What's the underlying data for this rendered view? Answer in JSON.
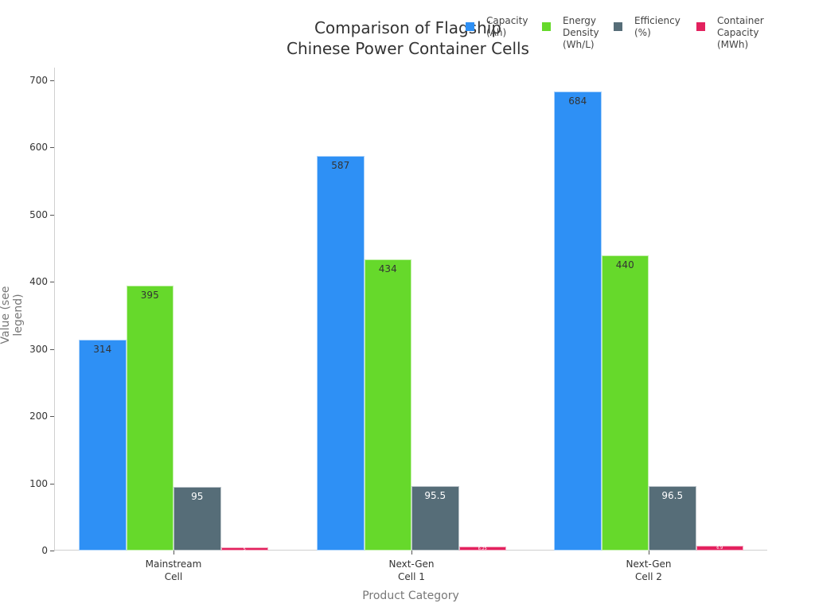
{
  "chart_data": {
    "type": "bar",
    "title": "Comparison of Flagship\nChinese Power Container Cells",
    "xlabel": "Product Category",
    "ylabel": "Value (see legend)",
    "ylim": [
      0,
      720
    ],
    "yticks": [
      0,
      100,
      200,
      300,
      400,
      500,
      600,
      700
    ],
    "grid": false,
    "legend_position": "top-right",
    "categories": [
      "Mainstream\nCell",
      "Next-Gen\nCell 1",
      "Next-Gen\nCell 2"
    ],
    "series": [
      {
        "name": "Capacity\n(Ah)",
        "color": "#2E90F5",
        "label_color": "#333333",
        "values": [
          314,
          587,
          684
        ],
        "labels": [
          "314",
          "587",
          "684"
        ]
      },
      {
        "name": "Energy\nDensity\n(Wh/L)",
        "color": "#66D92B",
        "label_color": "#333333",
        "values": [
          395,
          434,
          440
        ],
        "labels": [
          "395",
          "434",
          "440"
        ]
      },
      {
        "name": "Efficiency\n(%)",
        "color": "#566D78",
        "label_color": "#ffffff",
        "values": [
          95,
          95.5,
          96.5
        ],
        "labels": [
          "95",
          "95.5",
          "96.5"
        ]
      },
      {
        "name": "Container\nCapacity\n(MWh)",
        "color": "#E3215E",
        "label_color": "#ffffff",
        "values": [
          5,
          6.25,
          6.9
        ],
        "labels": [
          "5",
          "6.25",
          "6.9"
        ]
      }
    ]
  }
}
